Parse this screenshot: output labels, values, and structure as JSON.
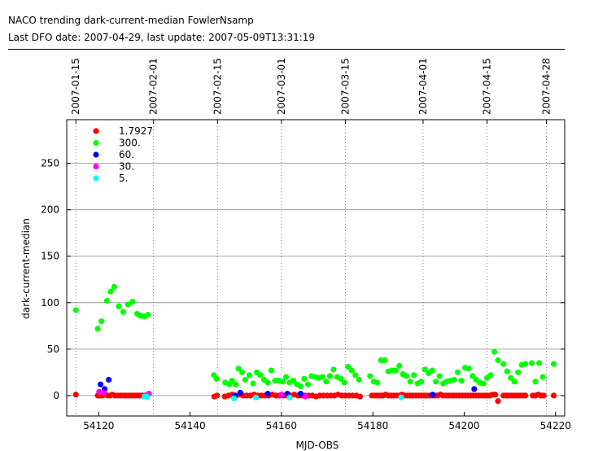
{
  "header": {
    "title": "NACO trending dark-current-median FowlerNsamp",
    "subtitle": "Last DFO date: 2007-04-29, last update: 2007-05-09T13:31:19"
  },
  "chart_data": {
    "type": "scatter",
    "xlabel": "MJD-OBS",
    "ylabel": "dark-current-median",
    "xlim": [
      54113,
      54222
    ],
    "ylim": [
      -22,
      297
    ],
    "xticks": [
      54120,
      54140,
      54160,
      54180,
      54200,
      54220
    ],
    "yticks": [
      0,
      50,
      100,
      150,
      200,
      250
    ],
    "top_date_ticks": [
      {
        "label": "2007-01-15",
        "mjd": 54115
      },
      {
        "label": "2007-02-01",
        "mjd": 54132
      },
      {
        "label": "2007-02-15",
        "mjd": 54146
      },
      {
        "label": "2007-03-01",
        "mjd": 54160
      },
      {
        "label": "2007-03-15",
        "mjd": 54174
      },
      {
        "label": "2007-04-01",
        "mjd": 54191
      },
      {
        "label": "2007-04-15",
        "mjd": 54205
      },
      {
        "label": "2007-04-28",
        "mjd": 54218
      }
    ],
    "grid": true,
    "legend_position": "top-left",
    "series": [
      {
        "name": "1.7927",
        "color": "#ff0000",
        "x": [
          54115.0,
          54119.8,
          54120.3,
          54120.8,
          54121.4,
          54122.0,
          54122.5,
          54123.0,
          54123.6,
          54124.2,
          54124.8,
          54125.4,
          54126.0,
          54126.6,
          54127.2,
          54127.8,
          54128.4,
          54129.0,
          54129.6,
          54130.2,
          54145.3,
          54145.9,
          54147.6,
          54148.4,
          54149.2,
          54150.0,
          54150.8,
          54151.6,
          54152.4,
          54153.2,
          54154.0,
          54154.8,
          54155.6,
          54156.4,
          54157.2,
          54158.0,
          54158.8,
          54159.6,
          54160.4,
          54161.2,
          54162.0,
          54162.8,
          54163.6,
          54164.4,
          54165.2,
          54166.0,
          54166.8,
          54167.6,
          54168.4,
          54169.2,
          54170.0,
          54170.8,
          54171.6,
          54172.4,
          54173.2,
          54174.0,
          54174.8,
          54175.6,
          54176.4,
          54177.2,
          54179.8,
          54180.4,
          54181.0,
          54181.6,
          54182.2,
          54182.8,
          54183.4,
          54184.0,
          54184.6,
          54185.2,
          54185.8,
          54186.4,
          54187.0,
          54187.6,
          54188.2,
          54188.8,
          54189.4,
          54190.0,
          54190.6,
          54191.2,
          54191.8,
          54192.4,
          54193.0,
          54193.6,
          54194.2,
          54194.8,
          54195.4,
          54196.0,
          54196.6,
          54197.2,
          54197.8,
          54198.4,
          54199.0,
          54199.6,
          54200.2,
          54200.8,
          54201.4,
          54202.0,
          54202.6,
          54203.2,
          54203.8,
          54204.4,
          54205.0,
          54205.6,
          54206.2,
          54206.8,
          54207.4,
          54208.6,
          54209.2,
          54209.8,
          54210.4,
          54211.0,
          54211.6,
          54212.2,
          54212.8,
          54213.4,
          54215.0,
          54215.6,
          54216.2,
          54216.8,
          54217.4,
          54219.6
        ],
        "y": [
          1,
          0,
          0,
          0,
          1,
          0,
          0,
          1,
          0,
          0,
          0,
          0,
          0,
          0,
          0,
          0,
          0,
          0,
          0,
          0,
          -1,
          0,
          -1,
          0,
          1,
          0,
          1,
          0,
          0,
          0,
          1,
          0,
          0,
          0,
          0,
          1,
          0,
          0,
          0,
          0,
          0,
          1,
          0,
          0,
          0,
          0,
          0,
          -1,
          0,
          0,
          0,
          0,
          0,
          1,
          0,
          0,
          0,
          0,
          0,
          -1,
          0,
          0,
          0,
          0,
          0,
          1,
          0,
          0,
          0,
          0,
          0,
          1,
          0,
          0,
          0,
          0,
          0,
          0,
          0,
          0,
          0,
          0,
          0,
          0,
          0,
          1,
          0,
          0,
          0,
          0,
          0,
          0,
          0,
          0,
          0,
          0,
          0,
          0,
          0,
          0,
          0,
          0,
          0,
          0,
          1,
          1,
          -6,
          0,
          0,
          0,
          0,
          0,
          0,
          0,
          0,
          0,
          0,
          0,
          1,
          0,
          0,
          0
        ]
      },
      {
        "name": "300.",
        "color": "#00ff00",
        "x": [
          54115.0,
          54119.8,
          54120.6,
          54121.8,
          54122.6,
          54123.4,
          54124.4,
          54125.4,
          54126.4,
          54127.4,
          54128.4,
          54129.2,
          54130.0,
          54130.8,
          54145.2,
          54145.8,
          54147.7,
          54148.6,
          54149.2,
          54150.0,
          54150.6,
          54151.4,
          54152.1,
          54153.0,
          54153.8,
          54154.6,
          54155.4,
          54156.2,
          54157.0,
          54157.8,
          54158.6,
          54159.4,
          54160.2,
          54161.0,
          54161.8,
          54162.6,
          54163.4,
          54164.2,
          54165.0,
          54165.8,
          54166.6,
          54167.4,
          54168.2,
          54169.0,
          54169.8,
          54170.6,
          54171.4,
          54172.2,
          54173.0,
          54173.8,
          54174.6,
          54175.4,
          54176.2,
          54177.0,
          54179.4,
          54180.2,
          54181.0,
          54181.8,
          54182.6,
          54183.4,
          54184.2,
          54185.0,
          54185.8,
          54186.6,
          54187.4,
          54188.2,
          54189.0,
          54189.8,
          54190.6,
          54191.4,
          54192.2,
          54193.0,
          54193.8,
          54194.6,
          54195.4,
          54196.2,
          54197.0,
          54197.8,
          54198.6,
          54199.4,
          54200.2,
          54201.0,
          54201.8,
          54202.6,
          54203.4,
          54204.2,
          54205.0,
          54205.8,
          54206.6,
          54207.4,
          54208.6,
          54209.4,
          54210.2,
          54211.0,
          54211.8,
          54212.6,
          54213.4,
          54214.8,
          54215.6,
          54216.4,
          54217.2,
          54219.6
        ],
        "y": [
          92,
          72,
          80,
          102,
          112,
          117,
          96,
          90,
          98,
          101,
          88,
          86,
          85,
          87,
          22,
          18,
          14,
          12,
          16,
          12,
          29,
          25,
          17,
          22,
          13,
          25,
          22,
          17,
          14,
          27,
          16,
          16,
          15,
          20,
          14,
          16,
          12,
          10,
          18,
          12,
          21,
          20,
          19,
          20,
          15,
          21,
          28,
          20,
          18,
          14,
          31,
          27,
          22,
          17,
          21,
          15,
          14,
          38,
          38,
          26,
          27,
          27,
          32,
          23,
          21,
          15,
          22,
          13,
          15,
          28,
          24,
          27,
          15,
          21,
          13,
          15,
          16,
          17,
          25,
          16,
          30,
          29,
          21,
          17,
          14,
          13,
          19,
          22,
          47,
          38,
          34,
          26,
          19,
          15,
          25,
          33,
          34,
          35,
          15,
          35,
          20,
          34
        ]
      },
      {
        "name": "60.",
        "color": "#0000ff",
        "x": [
          54120.4,
          54121.3,
          54122.2,
          54149.8,
          54151.0,
          54157.0,
          54161.3,
          54164.2,
          54193.1,
          54202.2
        ],
        "y": [
          12,
          7,
          17,
          0,
          3,
          2,
          2,
          2,
          1,
          7
        ]
      },
      {
        "name": "30.",
        "color": "#ff00ff",
        "x": [
          54120.1,
          54121.0,
          54131.0,
          54160.0,
          54165.2
        ],
        "y": [
          4,
          3,
          2,
          1,
          -1
        ]
      },
      {
        "name": "5.",
        "color": "#00ffff",
        "x": [
          54130.0,
          54130.6,
          54149.6,
          54154.4,
          54161.8,
          54186.2
        ],
        "y": [
          -1,
          -1,
          -3,
          -2,
          -2,
          -2
        ]
      }
    ]
  }
}
